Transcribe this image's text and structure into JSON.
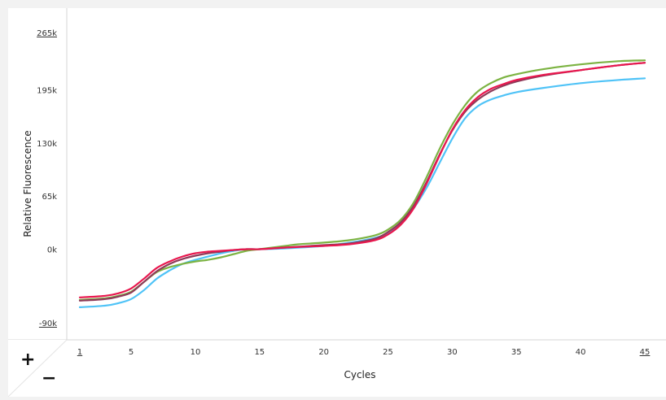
{
  "zoom": {
    "plus_label": "+",
    "minus_label": "−"
  },
  "chart_data": {
    "type": "line",
    "title": "",
    "xlabel": "Cycles",
    "ylabel": "Relative Fluorescence",
    "xlim": [
      1,
      45
    ],
    "ylim": [
      -90000,
      265000
    ],
    "x_ticks": [
      1,
      5,
      10,
      15,
      20,
      25,
      30,
      35,
      40,
      45
    ],
    "x_tick_labels": [
      "1",
      "5",
      "10",
      "15",
      "20",
      "25",
      "30",
      "35",
      "40",
      "45"
    ],
    "y_ticks": [
      -90000,
      0,
      65000,
      130000,
      195000,
      265000
    ],
    "y_tick_labels": [
      "-90k",
      "0k",
      "65k",
      "130k",
      "195k",
      "265k"
    ],
    "underlined_x_ticks": [
      "1",
      "45"
    ],
    "underlined_y_ticks": [
      "-90k",
      "265k"
    ],
    "grid": false,
    "legend": "none",
    "series": [
      {
        "color": "#4fc3f7",
        "x": [
          1,
          3,
          4,
          5,
          6,
          7,
          8,
          9,
          10,
          11,
          12,
          13,
          14,
          15,
          17,
          20,
          22,
          24,
          25,
          26,
          27,
          28,
          29,
          30,
          31,
          32,
          33,
          34,
          35,
          37,
          40,
          43,
          45
        ],
        "y": [
          -71000,
          -69000,
          -66000,
          -61000,
          -50000,
          -36000,
          -26000,
          -18000,
          -13000,
          -9000,
          -5000,
          -2000,
          0,
          0,
          1000,
          4000,
          8000,
          14000,
          20000,
          32000,
          50000,
          75000,
          105000,
          135000,
          160000,
          175000,
          183000,
          188000,
          192000,
          197000,
          203000,
          207000,
          209000
        ]
      },
      {
        "color": "#7cb342",
        "x": [
          1,
          3,
          4,
          5,
          6,
          7,
          8,
          9,
          10,
          11,
          12,
          13,
          14,
          15,
          17,
          18,
          20,
          22,
          24,
          25,
          26,
          27,
          28,
          29,
          30,
          31,
          32,
          33,
          34,
          35,
          37,
          40,
          43,
          45
        ],
        "y": [
          -62000,
          -60000,
          -57000,
          -52000,
          -40000,
          -28000,
          -22000,
          -18000,
          -15000,
          -13000,
          -10000,
          -6000,
          -2000,
          0,
          4000,
          6000,
          8000,
          11000,
          17000,
          24000,
          36000,
          57000,
          88000,
          122000,
          152000,
          176000,
          193000,
          203000,
          210000,
          214000,
          220000,
          226000,
          230000,
          231000
        ]
      },
      {
        "color": "#8e3a59",
        "x": [
          1,
          3,
          4,
          5,
          6,
          7,
          8,
          9,
          10,
          11,
          12,
          13,
          14,
          15,
          17,
          20,
          22,
          24,
          25,
          26,
          27,
          28,
          29,
          30,
          31,
          32,
          33,
          34,
          35,
          37,
          40,
          43,
          45
        ],
        "y": [
          -63000,
          -61000,
          -58000,
          -53000,
          -40000,
          -27000,
          -18000,
          -12000,
          -8000,
          -5000,
          -3000,
          -1000,
          0,
          0,
          2000,
          5000,
          7000,
          13000,
          21000,
          33000,
          53000,
          82000,
          115000,
          145000,
          168000,
          183000,
          193000,
          200000,
          205000,
          212000,
          219000,
          225000,
          228000
        ]
      },
      {
        "color": "#e8174e",
        "x": [
          1,
          3,
          4,
          5,
          6,
          7,
          8,
          9,
          10,
          11,
          12,
          13,
          14,
          15,
          17,
          20,
          22,
          24,
          25,
          26,
          27,
          28,
          29,
          30,
          31,
          32,
          33,
          34,
          35,
          37,
          40,
          43,
          45
        ],
        "y": [
          -59000,
          -57000,
          -54000,
          -48000,
          -36000,
          -23000,
          -15000,
          -9000,
          -5000,
          -3000,
          -2000,
          -1000,
          0,
          0,
          2000,
          4000,
          6000,
          11000,
          18000,
          30000,
          50000,
          80000,
          114000,
          146000,
          170000,
          186000,
          196000,
          202000,
          207000,
          213000,
          219000,
          225000,
          228000
        ]
      }
    ]
  }
}
